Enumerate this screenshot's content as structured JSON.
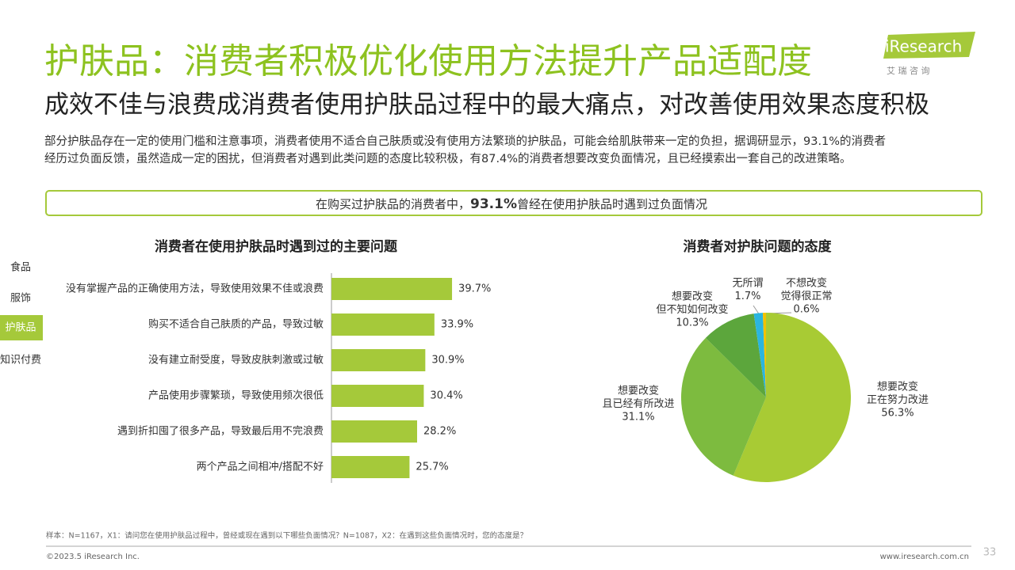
{
  "header": {
    "title": "护肤品：消费者积极优化使用方法提升产品适配度",
    "subtitle": "成效不佳与浪费成消费者使用护肤品过程中的最大痛点，对改善使用效果态度积极",
    "description": [
      "部分护肤品存在一定的使用门槛和注意事项，消费者使用不适合自己肤质或没有使用方法繁琐的护肤品，可能会给肌肤带来一定的负担，据调研显示，93.1%的消费者",
      "经历过负面反馈，虽然造成一定的困扰，但消费者对遇到此类问题的态度比较积极，有87.4%的消费者想要改变负面情况，且已经摸索出一套自己的改进策略。"
    ]
  },
  "logo": {
    "name": "iResearch",
    "sub": "艾 瑞 咨 询"
  },
  "nav": {
    "items": [
      "食品",
      "服饰",
      "护肤品",
      "知识付费"
    ],
    "active": 2
  },
  "banner": {
    "prefix": "在购买过护肤品的消费者中，",
    "highlight": "93.1%",
    "suffix": "曾经在使用护肤品时遇到过负面情况"
  },
  "chart_data": [
    {
      "type": "bar",
      "orientation": "horizontal",
      "title": "消费者在使用护肤品时遇到过的主要问题",
      "color": "#a5c93a",
      "categories": [
        "没有掌握产品的正确使用方法，导致使用效果不佳或浪费",
        "购买不适合自己肤质的产品，导致过敏",
        "没有建立耐受度，导致皮肤刺激或过敏",
        "产品使用步骤繁琐，导致使用频次很低",
        "遇到折扣囤了很多产品，导致最后用不完浪费",
        "两个产品之间相冲/搭配不好"
      ],
      "values": [
        39.7,
        33.9,
        30.9,
        30.4,
        28.2,
        25.7
      ],
      "value_labels": [
        "39.7%",
        "33.9%",
        "30.9%",
        "30.4%",
        "28.2%",
        "25.7%"
      ]
    },
    {
      "type": "pie",
      "title": "消费者对护肤问题的态度",
      "categories": [
        [
          "想要改变",
          "正在努力改进"
        ],
        [
          "想要改变",
          "且已经有所改进"
        ],
        [
          "想要改变",
          "但不知如何改变"
        ],
        [
          "无所谓"
        ],
        [
          "不想改变",
          "觉得很正常"
        ]
      ],
      "values": [
        56.3,
        31.1,
        10.3,
        1.7,
        0.6
      ],
      "value_labels": [
        "56.3%",
        "31.1%",
        "10.3%",
        "1.7%",
        "0.6%"
      ],
      "colors": [
        "#a8cb34",
        "#7dbb3f",
        "#5ca63c",
        "#2bb5df",
        "#f2c200"
      ]
    }
  ],
  "footer": {
    "note": "样本：N=1167，X1：请问您在使用护肤品过程中，曾经或现在遇到以下哪些负面情况？N=1087，X2：在遇到这些负面情况时，您的态度是？",
    "copyright": "©2023.5 iResearch Inc.",
    "url": "www.iresearch.com.cn",
    "page": "33"
  }
}
